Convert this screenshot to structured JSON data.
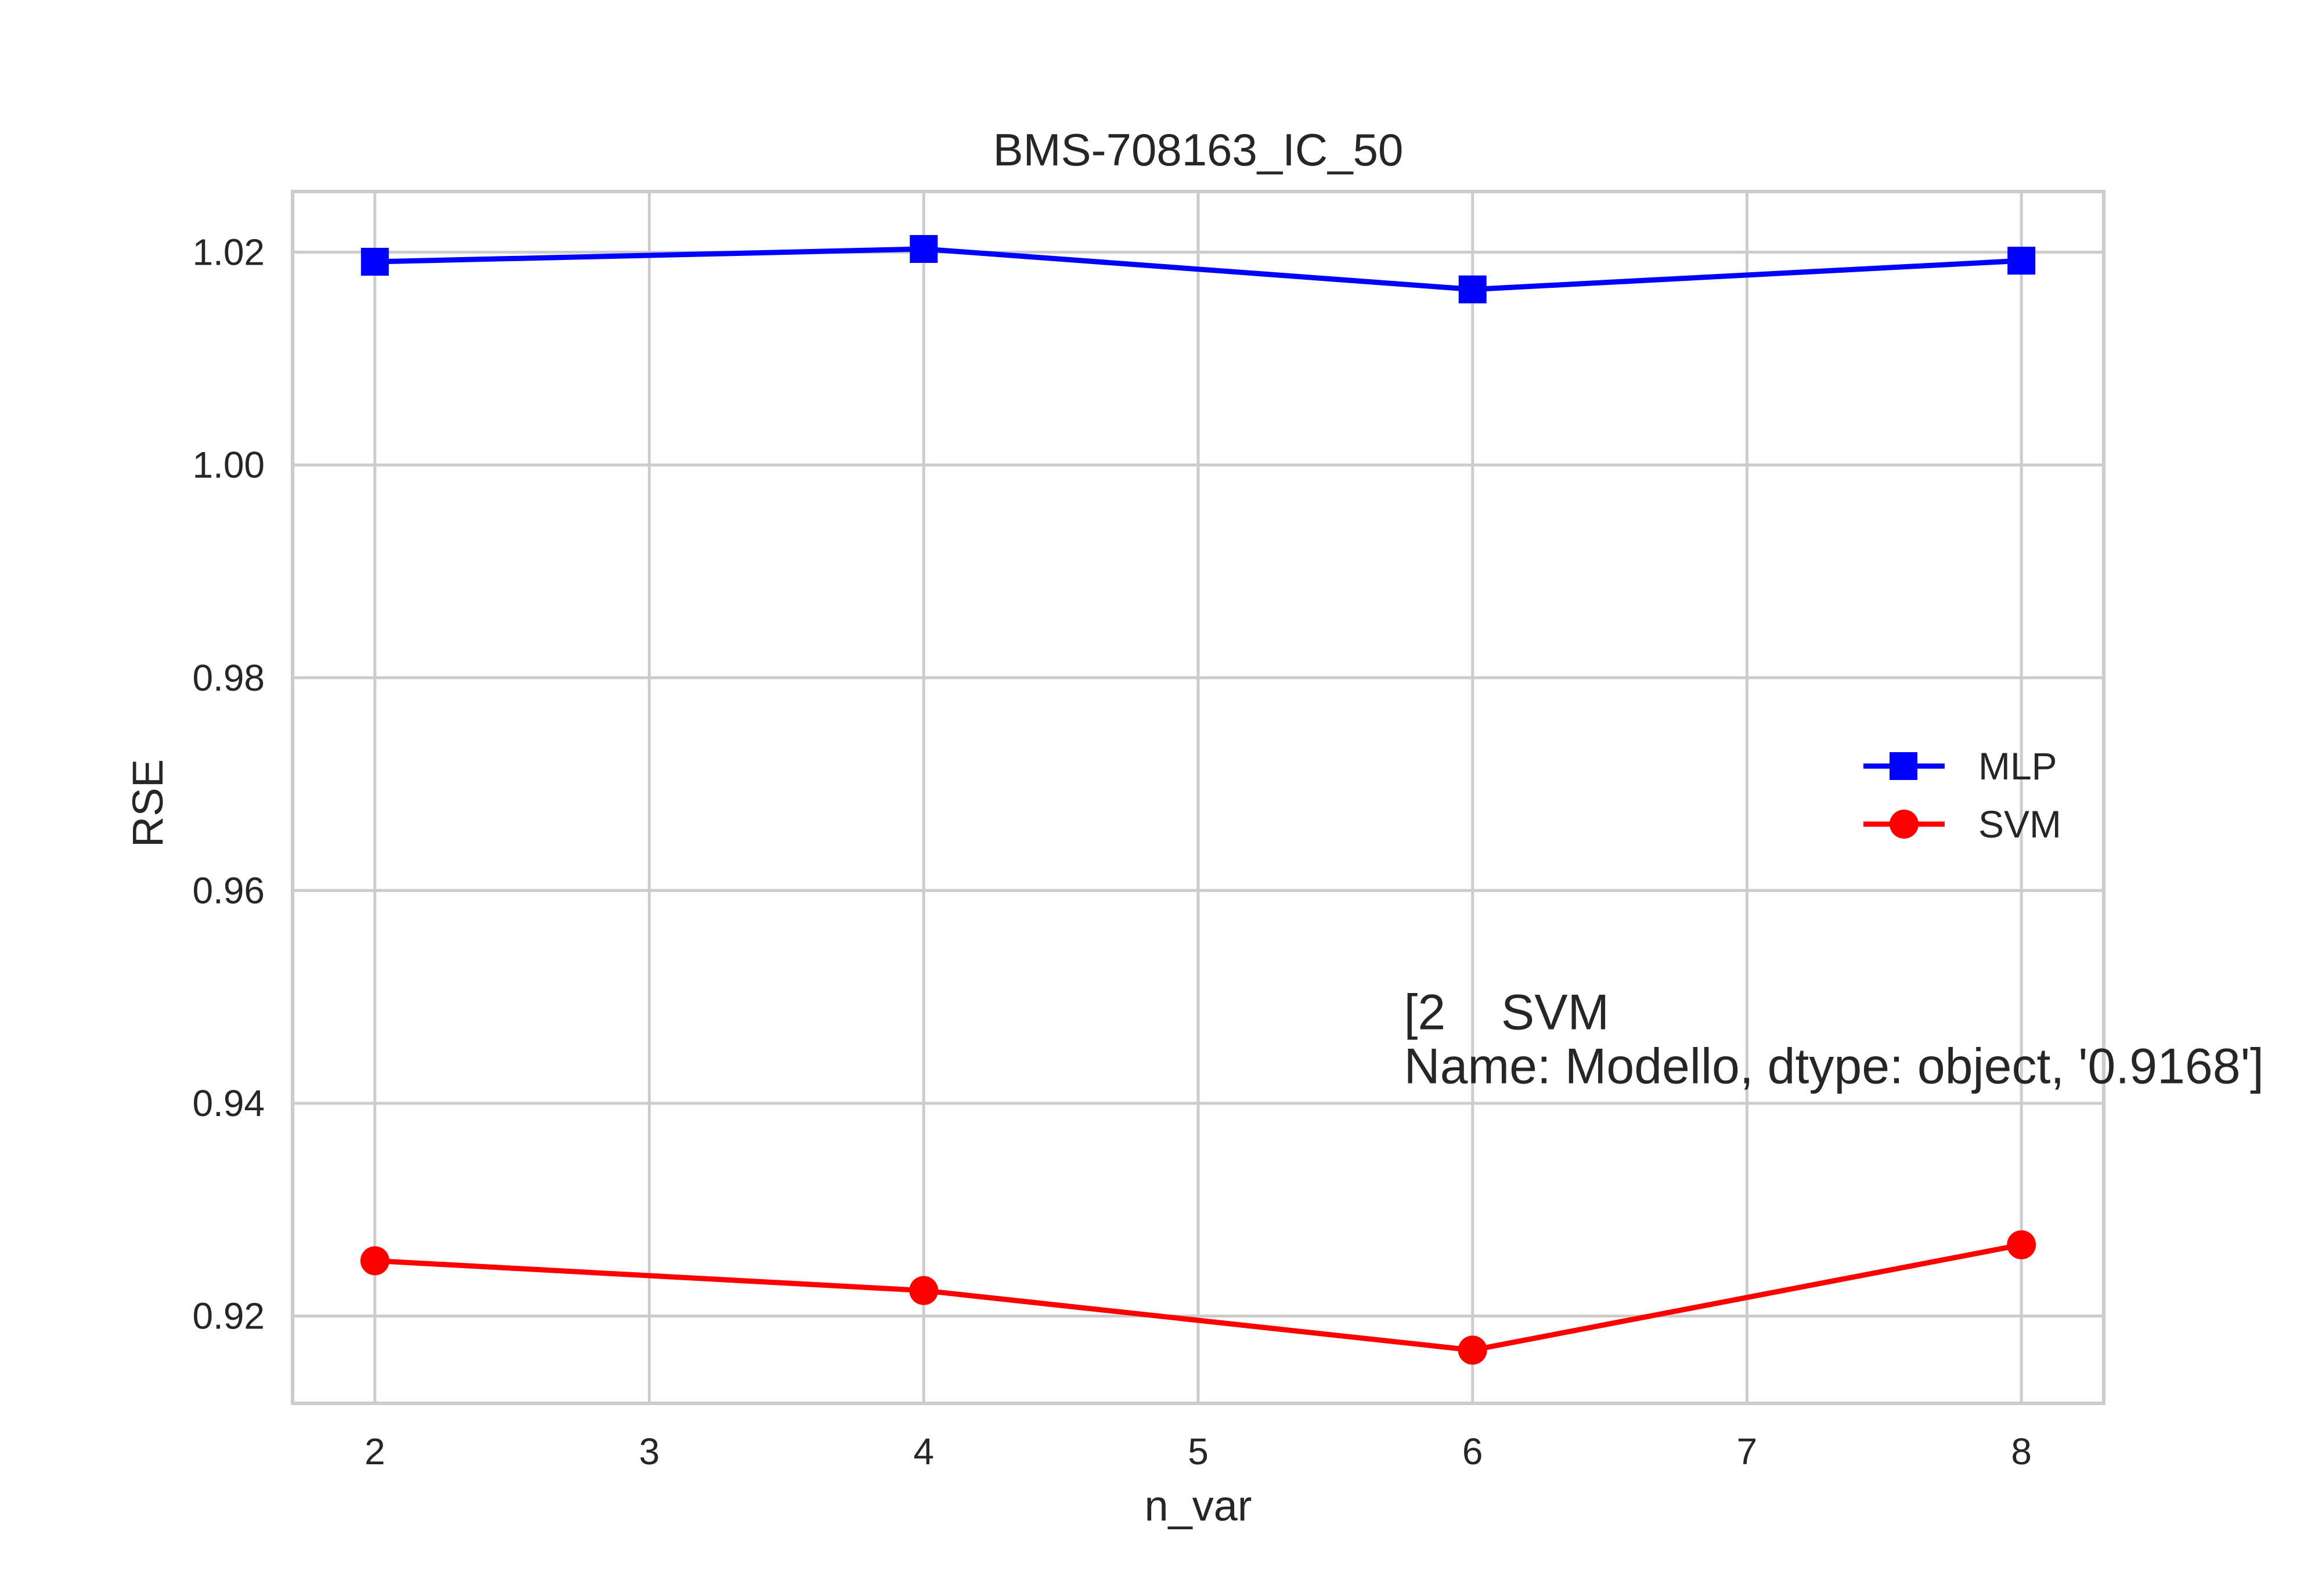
{
  "chart_data": {
    "type": "line",
    "title": "BMS-708163_IC_50",
    "xlabel": "n_var",
    "ylabel": "RSE",
    "x": [
      2,
      4,
      6,
      8
    ],
    "xlim": [
      1.7,
      8.3
    ],
    "ylim": [
      0.9118,
      1.0257
    ],
    "xticks": [
      2,
      3,
      4,
      5,
      6,
      7,
      8
    ],
    "yticks": [
      0.92,
      0.94,
      0.96,
      0.98,
      1.0,
      1.02
    ],
    "ytick_labels": [
      "0.92",
      "0.94",
      "0.96",
      "0.98",
      "1.00",
      "1.02"
    ],
    "grid": true,
    "legend_position": "center-right",
    "series": [
      {
        "name": "MLP",
        "values": [
          1.0191,
          1.0203,
          1.0165,
          1.0192
        ],
        "color": "#0000ff",
        "marker": "square"
      },
      {
        "name": "SVM",
        "values": [
          0.9252,
          0.9224,
          0.9168,
          0.9267
        ],
        "color": "#ff0000",
        "marker": "circle"
      }
    ],
    "annotation": {
      "lines": [
        "[2    SVM",
        "Name: Modello, dtype: object, '0.9168']"
      ],
      "x": 5.75,
      "y": 0.9428
    }
  }
}
